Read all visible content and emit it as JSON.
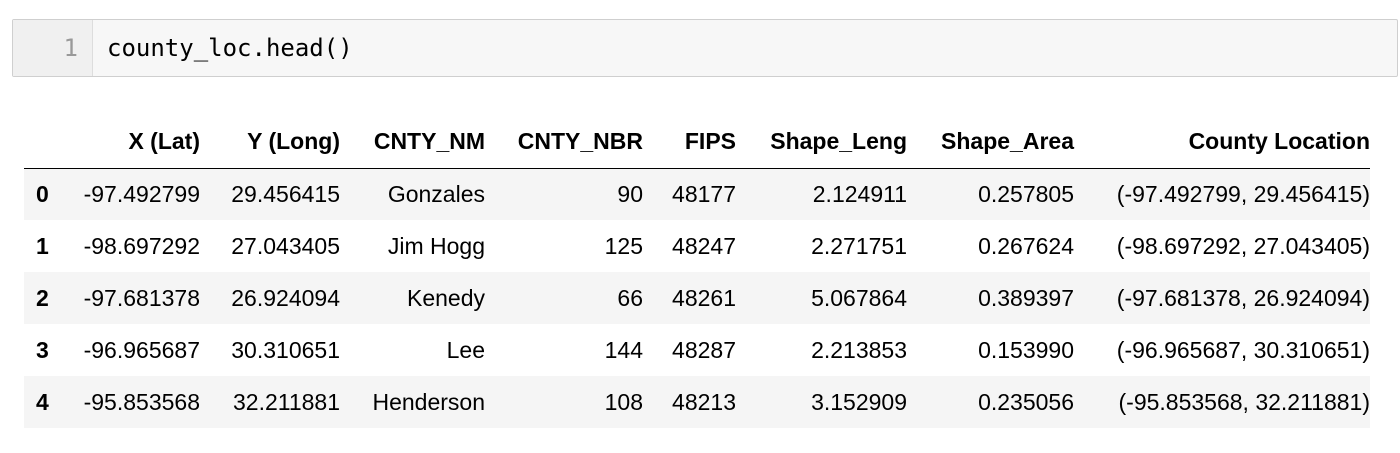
{
  "code_cell": {
    "line_number": "1",
    "code": "county_loc.head()"
  },
  "output_table": {
    "columns": [
      "",
      "X (Lat)",
      "Y (Long)",
      "CNTY_NM",
      "CNTY_NBR",
      "FIPS",
      "Shape_Leng",
      "Shape_Area",
      "County Location"
    ],
    "rows": [
      {
        "index": "0",
        "x_lat": "-97.492799",
        "y_long": "29.456415",
        "cnty_nm": "Gonzales",
        "cnty_nbr": "90",
        "fips": "48177",
        "shape_leng": "2.124911",
        "shape_area": "0.257805",
        "county_location": "(-97.492799, 29.456415)"
      },
      {
        "index": "1",
        "x_lat": "-98.697292",
        "y_long": "27.043405",
        "cnty_nm": "Jim Hogg",
        "cnty_nbr": "125",
        "fips": "48247",
        "shape_leng": "2.271751",
        "shape_area": "0.267624",
        "county_location": "(-98.697292, 27.043405)"
      },
      {
        "index": "2",
        "x_lat": "-97.681378",
        "y_long": "26.924094",
        "cnty_nm": "Kenedy",
        "cnty_nbr": "66",
        "fips": "48261",
        "shape_leng": "5.067864",
        "shape_area": "0.389397",
        "county_location": "(-97.681378, 26.924094)"
      },
      {
        "index": "3",
        "x_lat": "-96.965687",
        "y_long": "30.310651",
        "cnty_nm": "Lee",
        "cnty_nbr": "144",
        "fips": "48287",
        "shape_leng": "2.213853",
        "shape_area": "0.153990",
        "county_location": "(-96.965687, 30.310651)"
      },
      {
        "index": "4",
        "x_lat": "-95.853568",
        "y_long": "32.211881",
        "cnty_nm": "Henderson",
        "cnty_nbr": "108",
        "fips": "48213",
        "shape_leng": "3.152909",
        "shape_area": "0.235056",
        "county_location": "(-95.853568, 32.211881)"
      }
    ]
  }
}
